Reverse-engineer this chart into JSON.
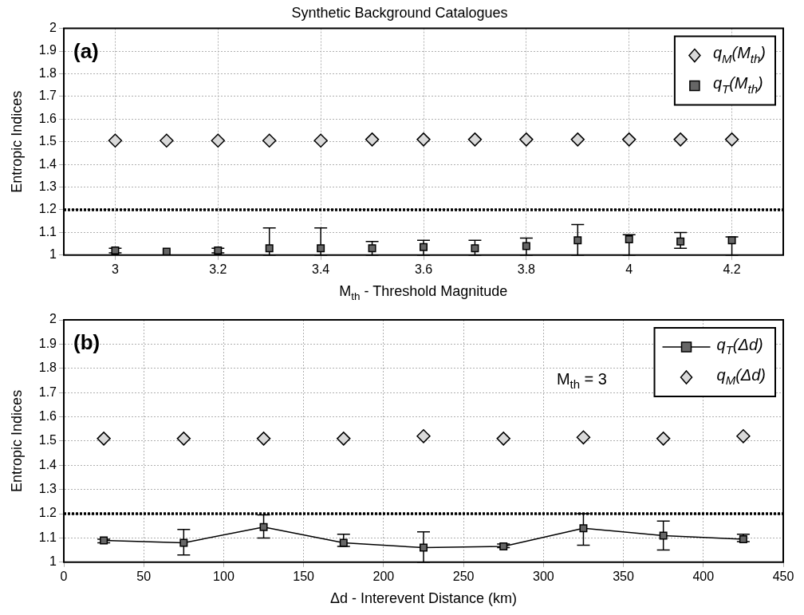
{
  "chart_data": [
    {
      "type": "scatter",
      "title": "Synthetic Background Catalogues",
      "xlabel": "M$_{th}$ - Threshold Magnitude",
      "ylabel": "Entropic Indices",
      "annotations": [
        "(a)"
      ],
      "x": [
        3,
        3.1,
        3.2,
        3.3,
        3.4,
        3.5,
        3.6,
        3.7,
        3.8,
        3.9,
        4,
        4.1,
        4.2
      ],
      "series": [
        {
          "name": "q$_{M}$(M$_{th}$)",
          "color": "#d9d9d9",
          "marker": "diamond",
          "values": [
            1.505,
            1.505,
            1.505,
            1.505,
            1.505,
            1.51,
            1.51,
            1.51,
            1.51,
            1.51,
            1.51,
            1.51,
            1.51
          ]
        },
        {
          "name": "q$_{T}$(M$_{th}$)",
          "color": "#666666",
          "marker": "square",
          "values": [
            1.02,
            1.015,
            1.02,
            1.03,
            1.03,
            1.03,
            1.035,
            1.03,
            1.04,
            1.065,
            1.07,
            1.06,
            1.065
          ],
          "errors": [
            [
              1.01,
              1.03
            ],
            null,
            [
              1.01,
              1.03
            ],
            [
              1,
              1.12
            ],
            [
              1,
              1.12
            ],
            [
              1,
              1.06
            ],
            [
              1,
              1.065
            ],
            [
              1,
              1.065
            ],
            [
              1,
              1.075
            ],
            [
              1,
              1.135
            ],
            [
              1,
              1.09
            ],
            [
              1.03,
              1.1
            ],
            [
              1,
              1.08
            ]
          ]
        }
      ],
      "xlim": [
        2.9,
        4.3
      ],
      "xticks": [
        3,
        3.2,
        3.4,
        3.6,
        3.8,
        4,
        4.2
      ],
      "ylim": [
        1,
        2
      ],
      "yticks": [
        1,
        1.1,
        1.2,
        1.3,
        1.4,
        1.5,
        1.6,
        1.7,
        1.8,
        1.9,
        2
      ],
      "ref_lines": [
        {
          "axis": "y",
          "value": 1.2,
          "line_style": "dotted",
          "color": "#000000"
        }
      ],
      "grid": true,
      "legend": "top right"
    },
    {
      "type": "scatter",
      "xlabel": "Δd - Interevent Distance (km)",
      "ylabel": "Entropic Indices",
      "annotations": [
        "(b)",
        "M$_{th}$ = 3"
      ],
      "x": [
        25,
        75,
        125,
        175,
        225,
        275,
        325,
        375,
        425
      ],
      "series": [
        {
          "name": "q$_{T}$(Δd)",
          "type": "line",
          "color": "#666666",
          "marker": "square",
          "values": [
            1.09,
            1.08,
            1.145,
            1.08,
            1.06,
            1.065,
            1.14,
            1.11,
            1.095
          ],
          "errors": [
            [
              1.08,
              1.095
            ],
            [
              1.03,
              1.135
            ],
            [
              1.1,
              1.195
            ],
            [
              1.065,
              1.115
            ],
            [
              1,
              1.125
            ],
            [
              1.06,
              1.075
            ],
            [
              1.07,
              1.2
            ],
            [
              1.05,
              1.17
            ],
            [
              1.085,
              1.115
            ]
          ]
        },
        {
          "name": "q$_{M}$(Δd)",
          "color": "#d9d9d9",
          "marker": "diamond",
          "values": [
            1.51,
            1.51,
            1.51,
            1.51,
            1.52,
            1.51,
            1.515,
            1.51,
            1.52
          ]
        }
      ],
      "xlim": [
        0,
        450
      ],
      "xticks": [
        0,
        50,
        100,
        150,
        200,
        250,
        300,
        350,
        400,
        450
      ],
      "ylim": [
        1,
        2
      ],
      "yticks": [
        1,
        1.1,
        1.2,
        1.3,
        1.4,
        1.5,
        1.6,
        1.7,
        1.8,
        1.9,
        2
      ],
      "ref_lines": [
        {
          "axis": "y",
          "value": 1.2,
          "line_style": "dotted",
          "color": "#000000"
        }
      ],
      "grid": true,
      "legend": "top right"
    }
  ]
}
